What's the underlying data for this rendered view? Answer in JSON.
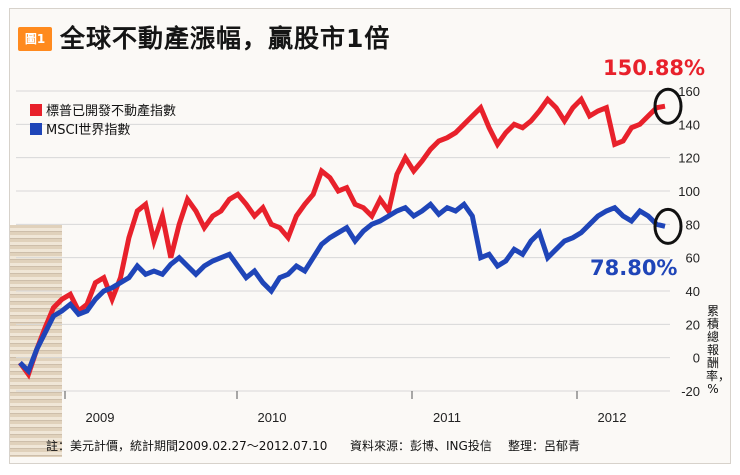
{
  "figure": {
    "badge": "圖1",
    "title": "全球不動產漲幅，贏股市1倍"
  },
  "colors": {
    "red_series": "#e8212b",
    "blue_series": "#1f45b8",
    "badge": "#ff8a1e"
  },
  "chart_data": {
    "type": "line",
    "title": "全球不動產漲幅，贏股市1倍",
    "ylabel": "累積總報酬率，%",
    "xlabel": "",
    "x_ticks": [
      "2009",
      "2010",
      "2011",
      "2012"
    ],
    "y_ticks": [
      "160",
      "140",
      "120",
      "100",
      "80",
      "60",
      "40",
      "20",
      "0",
      "-20"
    ],
    "ylim": [
      -20,
      160
    ],
    "grid": true,
    "legend_position": "top-left",
    "series": [
      {
        "name": "標普已開發不動產指數",
        "color": "#e8212b",
        "end_label": "150.88%",
        "values": [
          -3,
          -10,
          5,
          18,
          30,
          35,
          38,
          28,
          32,
          45,
          48,
          35,
          48,
          72,
          88,
          92,
          70,
          85,
          60,
          80,
          95,
          88,
          78,
          85,
          88,
          95,
          98,
          92,
          85,
          90,
          80,
          78,
          72,
          85,
          92,
          98,
          112,
          108,
          100,
          102,
          92,
          90,
          85,
          95,
          88,
          110,
          120,
          112,
          118,
          125,
          130,
          132,
          135,
          140,
          145,
          150,
          138,
          128,
          135,
          140,
          138,
          142,
          148,
          155,
          150,
          142,
          150,
          155,
          145,
          148,
          150,
          128,
          130,
          138,
          140,
          145,
          150,
          150.88
        ]
      },
      {
        "name": "MSCI世界指數",
        "color": "#1f45b8",
        "end_label": "78.80%",
        "values": [
          -3,
          -8,
          5,
          15,
          25,
          28,
          32,
          26,
          28,
          35,
          40,
          42,
          45,
          48,
          55,
          50,
          52,
          50,
          56,
          60,
          55,
          50,
          55,
          58,
          60,
          62,
          55,
          48,
          52,
          45,
          40,
          48,
          50,
          55,
          52,
          60,
          68,
          72,
          75,
          78,
          70,
          76,
          80,
          82,
          85,
          88,
          90,
          85,
          88,
          92,
          86,
          90,
          88,
          92,
          85,
          60,
          62,
          55,
          58,
          65,
          62,
          70,
          75,
          60,
          65,
          70,
          72,
          75,
          80,
          85,
          88,
          90,
          85,
          82,
          88,
          85,
          80,
          78.8
        ]
      }
    ]
  },
  "footer": {
    "note": "註：美元計價，統計期間2009.02.27～2012.07.10",
    "source": "資料來源：彭博、ING投信",
    "editor": "整理：呂郁青"
  }
}
